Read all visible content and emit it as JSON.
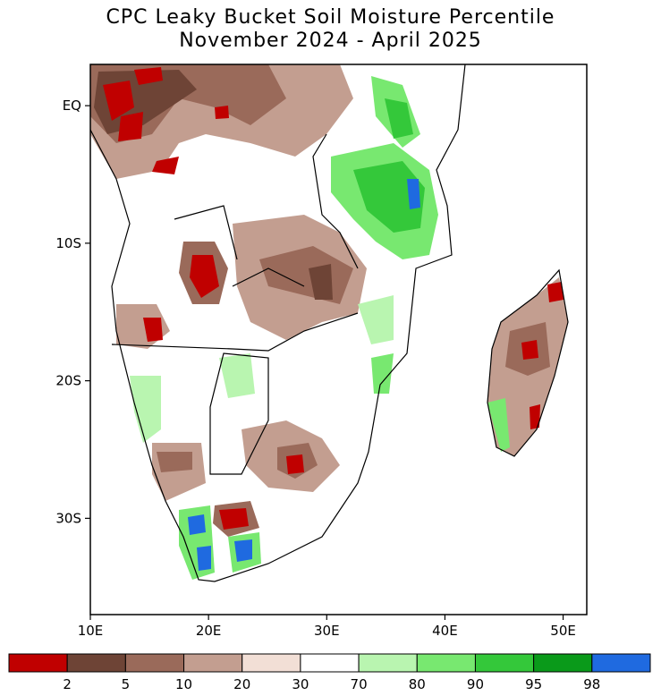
{
  "title_line1": "CPC Leaky Bucket Soil Moisture Percentile",
  "title_line2": "November 2024 - April 2025",
  "y_ticks": [
    {
      "label": "EQ",
      "lat": 0
    },
    {
      "label": "10S",
      "lat": -10
    },
    {
      "label": "20S",
      "lat": -20
    },
    {
      "label": "30S",
      "lat": -30
    }
  ],
  "x_ticks": [
    {
      "label": "10E",
      "lon": 10
    },
    {
      "label": "20E",
      "lon": 20
    },
    {
      "label": "30E",
      "lon": 30
    },
    {
      "label": "40E",
      "lon": 40
    },
    {
      "label": "50E",
      "lon": 50
    }
  ],
  "map_extent": {
    "lon_min": 10,
    "lon_max": 52,
    "lat_max": 3,
    "lat_min": -37
  },
  "legend": {
    "colors": [
      "#c00000",
      "#6e4436",
      "#9a6a5a",
      "#c39e90",
      "#f2dfd6",
      "#ffffff",
      "#b9f5b0",
      "#78e870",
      "#34c83a",
      "#0a9a1a",
      "#1f6ae0"
    ],
    "labels": [
      "2",
      "5",
      "10",
      "20",
      "30",
      "70",
      "80",
      "90",
      "95",
      "98"
    ]
  }
}
